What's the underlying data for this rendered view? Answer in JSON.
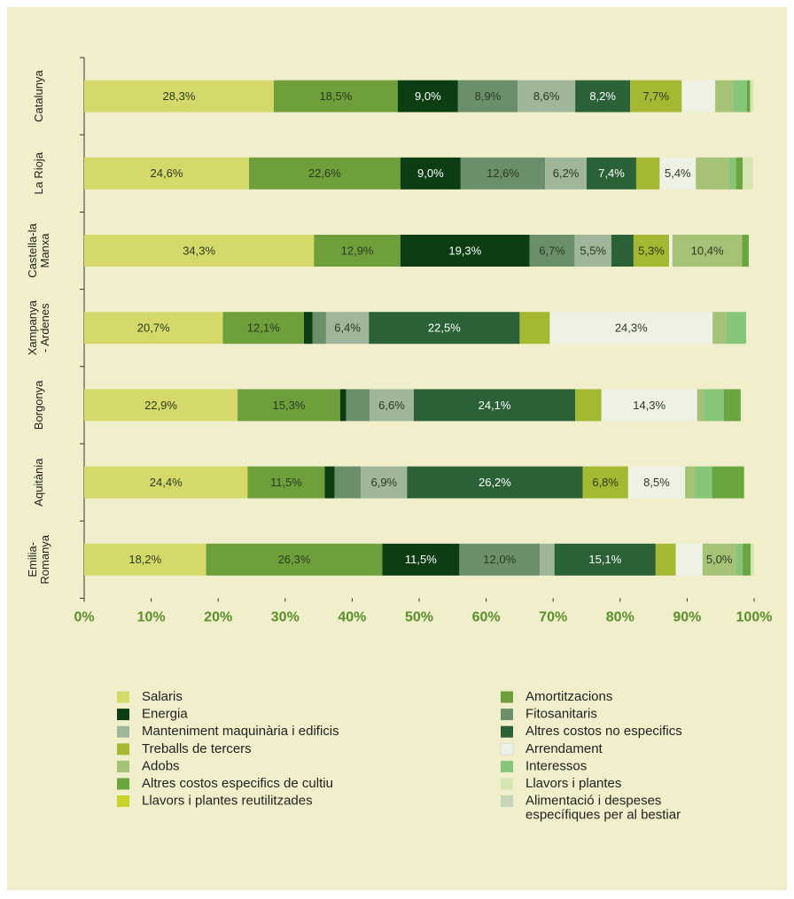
{
  "chart_data": {
    "type": "stacked_bar_horizontal",
    "categories": [
      "Catalunya",
      "La Rioja",
      "Castella-la\nManxa",
      "Xampanya\n- Ardenes",
      "Borgonya",
      "Aquitània",
      "Emilia-\nRomanya"
    ],
    "xlim": [
      0,
      100
    ],
    "xticks": [
      {
        "value": 0,
        "label": "0%"
      },
      {
        "value": 10,
        "label": "10%"
      },
      {
        "value": 20,
        "label": "20%"
      },
      {
        "value": 30,
        "label": "30%"
      },
      {
        "value": 40,
        "label": "40%"
      },
      {
        "value": 50,
        "label": "50%"
      },
      {
        "value": 60,
        "label": "60%"
      },
      {
        "value": 70,
        "label": "70%"
      },
      {
        "value": 80,
        "label": "80%"
      },
      {
        "value": 90,
        "label": "90%"
      },
      {
        "value": 100,
        "label": "100%"
      }
    ],
    "series": [
      {
        "name": "Salaris",
        "color": "#d4d96a",
        "values": [
          28.3,
          24.6,
          34.3,
          20.7,
          22.9,
          24.4,
          18.2
        ],
        "value_labels": [
          "28,3%",
          "24,6%",
          "34,3%",
          "20,7%",
          "22,9%",
          "24,4%",
          "18,2%"
        ]
      },
      {
        "name": "Amortitzacions",
        "color": "#6f9f3a",
        "values": [
          18.5,
          22.6,
          12.9,
          12.1,
          15.3,
          11.5,
          26.3
        ],
        "value_labels": [
          "18,5%",
          "22,6%",
          "12,9%",
          "12,1%",
          "15,3%",
          "11,5%",
          "26,3%"
        ]
      },
      {
        "name": "Energia",
        "color": "#0c3d13",
        "values": [
          9.0,
          9.0,
          19.3,
          1.3,
          0.9,
          1.5,
          11.5
        ],
        "value_labels": [
          "9,0%",
          "9,0%",
          "19,3%",
          null,
          null,
          null,
          "11,5%"
        ]
      },
      {
        "name": "Fitosanitaris",
        "color": "#6b8f6b",
        "values": [
          8.9,
          12.6,
          6.7,
          2.0,
          3.5,
          3.9,
          12.0
        ],
        "value_labels": [
          "8,9%",
          "12,6%",
          "6,7%",
          null,
          null,
          null,
          "12,0%"
        ]
      },
      {
        "name": "Manteniment maquinària i edificis",
        "color": "#9fb69a",
        "values": [
          8.6,
          6.2,
          5.5,
          6.4,
          6.6,
          6.9,
          2.2
        ],
        "value_labels": [
          "8,6%",
          "6,2%",
          "5,5%",
          "6,4%",
          "6,6%",
          "6,9%",
          null
        ]
      },
      {
        "name": "Altres costos no especifics",
        "color": "#2b6136",
        "values": [
          8.2,
          7.4,
          3.3,
          22.5,
          24.1,
          26.2,
          15.1
        ],
        "value_labels": [
          "8,2%",
          "7,4%",
          null,
          "22,5%",
          "24,1%",
          "26,2%",
          "15,1%"
        ]
      },
      {
        "name": "Treballs de tercers",
        "color": "#a5b832",
        "values": [
          7.7,
          3.5,
          5.3,
          4.5,
          3.9,
          6.8,
          3.0
        ],
        "value_labels": [
          "7,7%",
          null,
          "5,3%",
          null,
          null,
          "6,8%",
          null
        ]
      },
      {
        "name": "Arrendament",
        "color": "#eef1e4",
        "values": [
          5.0,
          5.4,
          0.5,
          24.3,
          14.3,
          8.5,
          4.0
        ],
        "value_labels": [
          null,
          "5,4%",
          null,
          "24,3%",
          "14,3%",
          "8,5%",
          null
        ]
      },
      {
        "name": "Adobs",
        "color": "#a6c277",
        "values": [
          2.7,
          5.0,
          10.4,
          2.0,
          1.0,
          1.5,
          5.0
        ],
        "value_labels": [
          null,
          null,
          "10,4%",
          null,
          null,
          null,
          "5,0%"
        ]
      },
      {
        "name": "Interessos",
        "color": "#86c67a",
        "values": [
          2.0,
          1.0,
          0,
          3.0,
          3.0,
          2.5,
          1.0
        ],
        "value_labels": [
          null,
          null,
          null,
          null,
          null,
          null,
          null
        ]
      },
      {
        "name": "Altres costos especifics de cultiu",
        "color": "#6aa63e",
        "values": [
          0.5,
          1.0,
          1.0,
          0,
          2.5,
          4.8,
          1.2
        ],
        "value_labels": [
          null,
          null,
          null,
          null,
          null,
          null,
          null
        ]
      },
      {
        "name": "Llavors i plantes",
        "color": "#d6e6b0",
        "values": [
          0.5,
          1.5,
          0,
          0,
          0,
          0,
          0.5
        ],
        "value_labels": [
          null,
          null,
          null,
          null,
          null,
          null,
          null
        ]
      },
      {
        "name": "Llavors i plantes reutilitzades",
        "color": "#c8d22b",
        "values": [
          0,
          0,
          0,
          0,
          0,
          0,
          0
        ],
        "value_labels": [
          null,
          null,
          null,
          null,
          null,
          null,
          null
        ]
      },
      {
        "name": "Alimentació i despeses\nespecífiques per al bestiar",
        "color": "#c5d6bc",
        "values": [
          0,
          0,
          0,
          0,
          0,
          0,
          0
        ],
        "value_labels": [
          null,
          null,
          null,
          null,
          null,
          null,
          null
        ]
      }
    ]
  }
}
